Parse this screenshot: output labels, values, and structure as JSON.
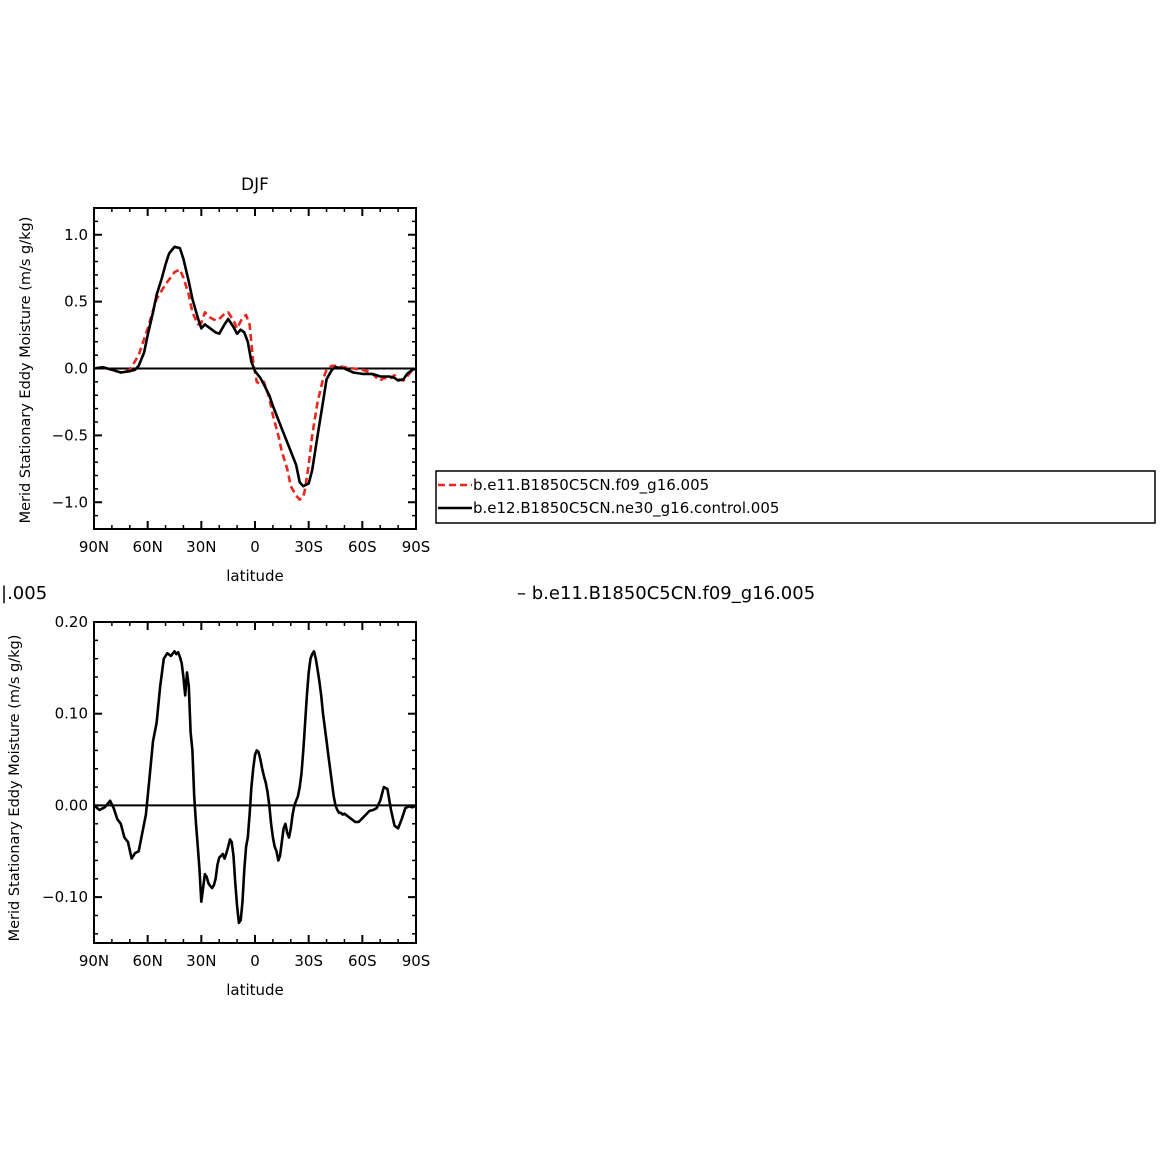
{
  "chart_data": [
    {
      "type": "line",
      "title": "DJF",
      "xlabel": "latitude",
      "ylabel": "Merid Stationary Eddy Moisture (m/s g/kg)",
      "xlim": [
        -90,
        90
      ],
      "ylim": [
        -1.2,
        1.2
      ],
      "xticks": [
        -90,
        -60,
        -30,
        0,
        30,
        60,
        90
      ],
      "xtick_labels": [
        "90N",
        "60N",
        "30N",
        "0",
        "30S",
        "60S",
        "90S"
      ],
      "yticks": [
        1.0,
        0.5,
        0.0,
        -0.5,
        -1.0
      ],
      "ytick_labels": [
        "1.0",
        "0.5",
        "0.0",
        "−0.5",
        "−1.0"
      ],
      "grid": false,
      "legend_position": "right",
      "series": [
        {
          "name": "b.e11.B1850C5CN.f09_g16.005",
          "color": "#e8281e",
          "dash": "dashed",
          "x": [
            -90,
            -85,
            -80,
            -75,
            -70,
            -65,
            -60,
            -55,
            -50,
            -45,
            -42,
            -40,
            -37,
            -35,
            -32,
            -30,
            -28,
            -25,
            -22,
            -20,
            -17,
            -15,
            -12,
            -10,
            -7,
            -5,
            -3,
            -1,
            1,
            3,
            5,
            8,
            10,
            13,
            15,
            18,
            20,
            23,
            25,
            27,
            28,
            30,
            32,
            35,
            38,
            40,
            43,
            45,
            50,
            55,
            60,
            65,
            68,
            70,
            72,
            75,
            78,
            80,
            83,
            85,
            88,
            90
          ],
          "values": [
            0.0,
            0.01,
            -0.01,
            -0.03,
            -0.01,
            0.1,
            0.3,
            0.52,
            0.63,
            0.72,
            0.74,
            0.68,
            0.55,
            0.42,
            0.33,
            0.34,
            0.42,
            0.38,
            0.36,
            0.37,
            0.41,
            0.42,
            0.36,
            0.3,
            0.38,
            0.4,
            0.33,
            0.05,
            -0.1,
            -0.12,
            -0.1,
            -0.22,
            -0.35,
            -0.5,
            -0.62,
            -0.75,
            -0.88,
            -0.95,
            -0.98,
            -0.96,
            -0.9,
            -0.72,
            -0.5,
            -0.25,
            -0.08,
            -0.01,
            0.02,
            0.02,
            0.01,
            0.0,
            -0.01,
            -0.03,
            -0.07,
            -0.09,
            -0.07,
            -0.08,
            -0.05,
            -0.08,
            -0.09,
            -0.06,
            -0.01,
            0.0
          ]
        },
        {
          "name": "b.e12.B1850C5CN.ne30_g16.control.005",
          "color": "#000000",
          "dash": "solid",
          "x": [
            -90,
            -85,
            -80,
            -75,
            -70,
            -67,
            -65,
            -62,
            -60,
            -57,
            -55,
            -52,
            -50,
            -48,
            -45,
            -42,
            -40,
            -37,
            -35,
            -32,
            -30,
            -28,
            -25,
            -22,
            -20,
            -17,
            -15,
            -12,
            -10,
            -8,
            -6,
            -4,
            -2,
            0,
            3,
            5,
            8,
            10,
            15,
            20,
            23,
            25,
            27,
            30,
            32,
            35,
            38,
            40,
            43,
            45,
            50,
            55,
            60,
            65,
            68,
            70,
            75,
            78,
            80,
            83,
            85,
            88,
            90
          ],
          "values": [
            0.0,
            0.01,
            -0.01,
            -0.03,
            -0.02,
            -0.01,
            0.02,
            0.12,
            0.25,
            0.42,
            0.55,
            0.68,
            0.78,
            0.86,
            0.91,
            0.9,
            0.82,
            0.65,
            0.52,
            0.38,
            0.3,
            0.33,
            0.3,
            0.27,
            0.26,
            0.33,
            0.37,
            0.31,
            0.26,
            0.29,
            0.27,
            0.2,
            0.05,
            -0.02,
            -0.07,
            -0.12,
            -0.2,
            -0.28,
            -0.45,
            -0.62,
            -0.72,
            -0.85,
            -0.88,
            -0.86,
            -0.76,
            -0.5,
            -0.25,
            -0.08,
            -0.01,
            0.01,
            0.0,
            -0.03,
            -0.04,
            -0.04,
            -0.05,
            -0.06,
            -0.06,
            -0.07,
            -0.09,
            -0.08,
            -0.04,
            -0.01,
            0.0
          ]
        }
      ]
    },
    {
      "type": "line",
      "title": "",
      "xlabel": "latitude",
      "ylabel": "Merid Stationary Eddy Moisture (m/s g/kg)",
      "xlim": [
        -90,
        90
      ],
      "ylim": [
        -0.15,
        0.2
      ],
      "xticks": [
        -90,
        -60,
        -30,
        0,
        30,
        60,
        90
      ],
      "xtick_labels": [
        "90N",
        "60N",
        "30N",
        "0",
        "30S",
        "60S",
        "90S"
      ],
      "yticks": [
        0.2,
        0.1,
        0.0,
        -0.1
      ],
      "ytick_labels": [
        "0.20",
        "0.10",
        "0.00",
        "−0.10"
      ],
      "grid": false,
      "series": [
        {
          "name": "",
          "color": "#000000",
          "dash": "solid",
          "x": [
            -90,
            -87,
            -84,
            -81,
            -79,
            -77,
            -75,
            -73,
            -71,
            -69,
            -67,
            -65,
            -63,
            -61,
            -59,
            -57,
            -55,
            -53,
            -51,
            -49,
            -47,
            -45,
            -44,
            -43,
            -42,
            -41,
            -40,
            -39,
            -38,
            -37,
            -36,
            -35,
            -34,
            -33,
            -32,
            -31,
            -30,
            -29,
            -28,
            -27,
            -26,
            -25,
            -24,
            -23,
            -22,
            -21,
            -20,
            -19,
            -18,
            -17,
            -16,
            -15,
            -14,
            -13,
            -12,
            -11,
            -10,
            -9,
            -8,
            -7,
            -6,
            -5,
            -4,
            -3,
            -2,
            -1,
            0,
            1,
            2,
            3,
            4,
            5,
            6,
            7,
            8,
            9,
            10,
            11,
            12,
            13,
            14,
            15,
            16,
            17,
            18,
            19,
            20,
            21,
            22,
            23,
            24,
            25,
            26,
            27,
            28,
            29,
            30,
            31,
            32,
            33,
            34,
            35,
            36,
            37,
            38,
            39,
            40,
            41,
            42,
            43,
            44,
            45,
            46,
            47,
            48,
            49,
            50,
            52,
            54,
            56,
            58,
            60,
            62,
            64,
            66,
            68,
            70,
            72,
            74,
            76,
            78,
            80,
            82,
            84,
            86,
            88,
            90
          ],
          "values": [
            0.0,
            -0.005,
            -0.002,
            0.005,
            -0.003,
            -0.015,
            -0.02,
            -0.035,
            -0.04,
            -0.058,
            -0.052,
            -0.05,
            -0.03,
            -0.01,
            0.03,
            0.07,
            0.09,
            0.13,
            0.16,
            0.166,
            0.163,
            0.168,
            0.165,
            0.167,
            0.162,
            0.155,
            0.14,
            0.12,
            0.145,
            0.13,
            0.08,
            0.06,
            0.01,
            -0.02,
            -0.045,
            -0.07,
            -0.105,
            -0.09,
            -0.075,
            -0.078,
            -0.085,
            -0.088,
            -0.09,
            -0.087,
            -0.08,
            -0.065,
            -0.057,
            -0.055,
            -0.053,
            -0.058,
            -0.052,
            -0.045,
            -0.037,
            -0.04,
            -0.055,
            -0.085,
            -0.11,
            -0.128,
            -0.125,
            -0.105,
            -0.07,
            -0.045,
            -0.035,
            -0.01,
            0.02,
            0.04,
            0.055,
            0.06,
            0.058,
            0.05,
            0.04,
            0.032,
            0.025,
            0.015,
            0.0,
            -0.02,
            -0.035,
            -0.045,
            -0.05,
            -0.06,
            -0.055,
            -0.04,
            -0.025,
            -0.02,
            -0.03,
            -0.035,
            -0.025,
            -0.01,
            0.0,
            0.005,
            0.01,
            0.02,
            0.035,
            0.06,
            0.09,
            0.12,
            0.145,
            0.16,
            0.165,
            0.168,
            0.16,
            0.148,
            0.135,
            0.12,
            0.1,
            0.085,
            0.07,
            0.055,
            0.04,
            0.025,
            0.01,
            0.0,
            -0.005,
            -0.008,
            -0.008,
            -0.01,
            -0.009,
            -0.012,
            -0.015,
            -0.018,
            -0.018,
            -0.014,
            -0.01,
            -0.006,
            -0.005,
            -0.003,
            0.005,
            0.02,
            0.018,
            -0.005,
            -0.022,
            -0.025,
            -0.015,
            -0.003,
            -0.001,
            -0.002,
            0.0
          ]
        }
      ]
    }
  ],
  "legend_top": {
    "entries": [
      "b.e11.B1850C5CN.f09_g16.005",
      "b.e12.B1850C5CN.ne30_g16.control.005"
    ]
  },
  "bottom_panel": {
    "left_clipped_text": "|.005",
    "right_title": "– b.e11.B1850C5CN.f09_g16.005"
  }
}
